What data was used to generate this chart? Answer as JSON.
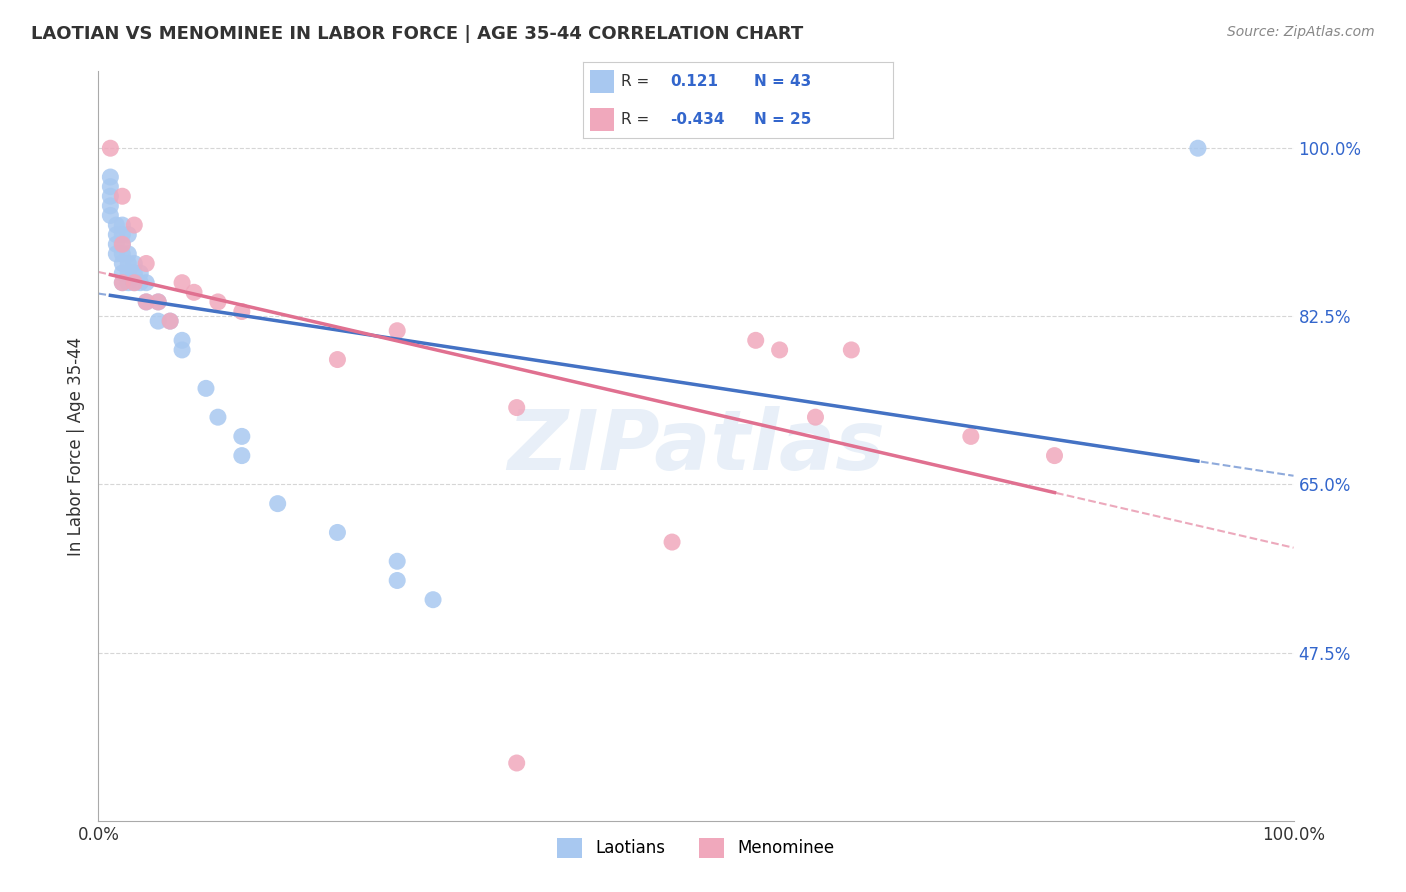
{
  "title": "LAOTIAN VS MENOMINEE IN LABOR FORCE | AGE 35-44 CORRELATION CHART",
  "source": "Source: ZipAtlas.com",
  "ylabel": "In Labor Force | Age 35-44",
  "xlim": [
    0.0,
    1.0
  ],
  "ylim": [
    0.3,
    1.08
  ],
  "yticks": [
    0.475,
    0.65,
    0.825,
    1.0
  ],
  "ytick_labels": [
    "47.5%",
    "65.0%",
    "82.5%",
    "100.0%"
  ],
  "xtick_labels": [
    "0.0%",
    "100.0%"
  ],
  "xticks": [
    0.0,
    1.0
  ],
  "r_laotian": 0.121,
  "n_laotian": 43,
  "r_menominee": -0.434,
  "n_menominee": 25,
  "laotian_color": "#a8c8f0",
  "menominee_color": "#f0a8bc",
  "trend_laotian_color": "#4472c4",
  "trend_menominee_color": "#e07090",
  "background_color": "#ffffff",
  "laotian_x": [
    0.01,
    0.01,
    0.01,
    0.01,
    0.01,
    0.015,
    0.015,
    0.015,
    0.015,
    0.02,
    0.02,
    0.02,
    0.02,
    0.02,
    0.02,
    0.02,
    0.025,
    0.025,
    0.025,
    0.025,
    0.025,
    0.03,
    0.03,
    0.03,
    0.035,
    0.035,
    0.04,
    0.04,
    0.05,
    0.05,
    0.06,
    0.07,
    0.07,
    0.09,
    0.1,
    0.12,
    0.12,
    0.15,
    0.2,
    0.25,
    0.25,
    0.28,
    0.92
  ],
  "laotian_y": [
    0.97,
    0.96,
    0.95,
    0.94,
    0.93,
    0.92,
    0.91,
    0.9,
    0.89,
    0.92,
    0.91,
    0.9,
    0.89,
    0.88,
    0.87,
    0.86,
    0.91,
    0.89,
    0.88,
    0.87,
    0.86,
    0.88,
    0.87,
    0.86,
    0.87,
    0.86,
    0.86,
    0.84,
    0.84,
    0.82,
    0.82,
    0.8,
    0.79,
    0.75,
    0.72,
    0.7,
    0.68,
    0.63,
    0.6,
    0.57,
    0.55,
    0.53,
    1.0
  ],
  "menominee_x": [
    0.01,
    0.02,
    0.02,
    0.02,
    0.03,
    0.03,
    0.04,
    0.04,
    0.05,
    0.06,
    0.07,
    0.08,
    0.1,
    0.12,
    0.2,
    0.25,
    0.35,
    0.48,
    0.55,
    0.57,
    0.6,
    0.63,
    0.73,
    0.8,
    0.35
  ],
  "menominee_y": [
    1.0,
    0.95,
    0.9,
    0.86,
    0.92,
    0.86,
    0.88,
    0.84,
    0.84,
    0.82,
    0.86,
    0.85,
    0.84,
    0.83,
    0.78,
    0.81,
    0.73,
    0.59,
    0.8,
    0.79,
    0.72,
    0.79,
    0.7,
    0.68,
    0.36
  ]
}
